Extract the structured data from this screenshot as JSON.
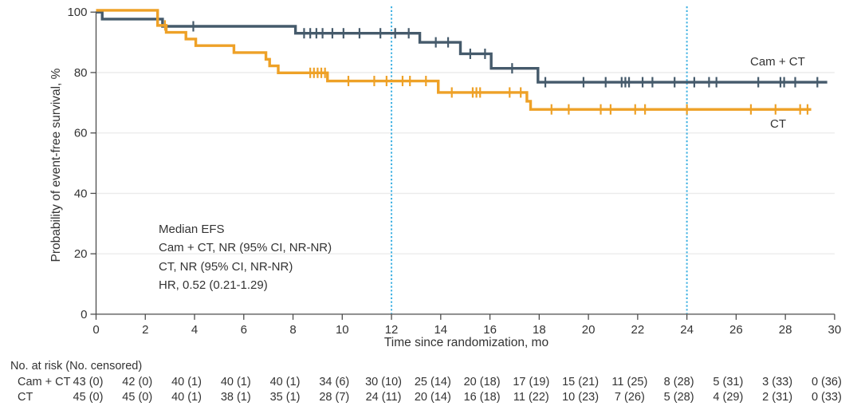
{
  "figure": {
    "kind": "Kaplan-Meier event-free survival plot"
  },
  "chart_data": {
    "type": "line",
    "variant": "kaplan_meier_step",
    "title": "",
    "xlabel": "Time since randomization, mo",
    "ylabel": "Probability of event-free survival, %",
    "xlim": [
      0,
      30
    ],
    "ylim": [
      0,
      100
    ],
    "x_ticks": [
      0,
      2,
      4,
      6,
      8,
      10,
      12,
      14,
      16,
      18,
      20,
      22,
      24,
      26,
      28,
      30
    ],
    "y_ticks": [
      0,
      20,
      40,
      60,
      80,
      100
    ],
    "gridlines_y": [
      20,
      40,
      60,
      80
    ],
    "grid_color": "#EBEBEB",
    "reference_lines_x": [
      12,
      24
    ],
    "reference_line_color": "#3EB1E2",
    "axis_color": "#4D4D4D",
    "text_color": "#333333",
    "annotation": [
      "Median EFS",
      "Cam + CT, NR (95% CI, NR-NR)",
      "CT, NR (95% CI, NR-NR)",
      "HR, 0.52 (0.21-1.29)"
    ],
    "series": [
      {
        "name": "Cam + CT",
        "color": "#455A6B",
        "end_time": 29.7,
        "steps": [
          [
            0,
            100
          ],
          [
            0.25,
            97.7
          ],
          [
            2.7,
            95.3
          ],
          [
            8.1,
            93.0
          ],
          [
            13.15,
            90.0
          ],
          [
            14.8,
            86.2
          ],
          [
            16.05,
            81.4
          ],
          [
            17.95,
            76.8
          ]
        ],
        "censor_times": [
          3.95,
          8.45,
          8.7,
          8.95,
          9.2,
          9.6,
          10.05,
          10.7,
          11.55,
          12.15,
          12.7,
          13.8,
          14.3,
          15.2,
          15.8,
          16.9,
          18.25,
          19.8,
          20.7,
          21.35,
          21.5,
          21.65,
          22.2,
          22.6,
          23.5,
          24.3,
          24.9,
          25.2,
          26.9,
          27.8,
          27.95,
          28.4,
          29.3
        ]
      },
      {
        "name": "CT",
        "color": "#EEA127",
        "end_time": 29.05,
        "steps": [
          [
            0,
            100
          ],
          [
            2.5,
            95.6
          ],
          [
            2.85,
            93.3
          ],
          [
            3.65,
            91.1
          ],
          [
            4.05,
            88.9
          ],
          [
            5.6,
            86.6
          ],
          [
            6.9,
            84.4
          ],
          [
            7.05,
            82.2
          ],
          [
            7.4,
            79.9
          ],
          [
            9.4,
            77.2
          ],
          [
            13.9,
            73.4
          ],
          [
            17.5,
            70.5
          ],
          [
            17.65,
            67.8
          ]
        ],
        "censor_times": [
          2.8,
          8.7,
          8.85,
          9.0,
          9.15,
          9.3,
          10.25,
          11.3,
          11.8,
          12.45,
          12.75,
          13.4,
          14.45,
          15.3,
          15.45,
          15.6,
          16.8,
          17.25,
          18.5,
          19.2,
          20.5,
          20.9,
          21.9,
          22.3,
          24.0,
          26.6,
          27.6,
          28.6,
          28.9
        ]
      }
    ]
  },
  "risk_table": {
    "header": "No. at risk (No. censored)",
    "time_points": [
      0,
      2,
      4,
      6,
      8,
      10,
      12,
      14,
      16,
      18,
      20,
      22,
      24,
      26,
      28,
      30
    ],
    "rows": [
      {
        "label": "Cam + CT",
        "values": [
          "43 (0)",
          "42 (0)",
          "40 (1)",
          "40 (1)",
          "40 (1)",
          "34 (6)",
          "30 (10)",
          "25 (14)",
          "20 (18)",
          "17 (19)",
          "15 (21)",
          "11 (25)",
          "8 (28)",
          "5 (31)",
          "3 (33)",
          "0 (36)"
        ]
      },
      {
        "label": "CT",
        "values": [
          "45 (0)",
          "45 (0)",
          "40 (1)",
          "38 (1)",
          "35 (1)",
          "28 (7)",
          "24 (11)",
          "20 (14)",
          "16 (18)",
          "11 (22)",
          "10 (23)",
          "7 (26)",
          "5 (28)",
          "4 (29)",
          "2 (31)",
          "0 (33)"
        ]
      }
    ]
  }
}
